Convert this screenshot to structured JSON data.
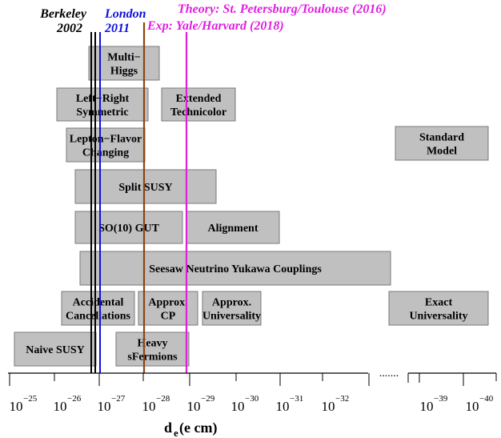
{
  "colors": {
    "berkeley": "#000000",
    "london": "#1010e0",
    "theory": "#e020e0",
    "yale": "#8b4513",
    "box_fill": "#c0c0c0",
    "box_stroke": "#7a7a7a"
  },
  "labels": {
    "berkeley": [
      "Berkeley",
      "2002"
    ],
    "london": [
      "London",
      "2011"
    ],
    "theory": "Theory: St. Petersburg/Toulouse (2016)",
    "exp": "Exp: Yale/Harvard (2018)"
  },
  "axis": {
    "title_main": "d",
    "title_sub": "e",
    "title_units": " (e cm)",
    "break_dots": ".......",
    "ticks": [
      {
        "base": "10",
        "exp": "−25"
      },
      {
        "base": "10",
        "exp": "−26"
      },
      {
        "base": "10",
        "exp": "−27"
      },
      {
        "base": "10",
        "exp": "−28"
      },
      {
        "base": "10",
        "exp": "−29"
      },
      {
        "base": "10",
        "exp": "−30"
      },
      {
        "base": "10",
        "exp": "−31"
      },
      {
        "base": "10",
        "exp": "−32"
      },
      {
        "base": "10",
        "exp": "−39"
      },
      {
        "base": "10",
        "exp": "−40"
      }
    ]
  },
  "models": [
    {
      "name": "multi-higgs",
      "lines": [
        "Multi−",
        "Higgs"
      ]
    },
    {
      "name": "left-right-symmetric",
      "lines": [
        "Left−Right",
        "Symmetric"
      ]
    },
    {
      "name": "extended-technicolor",
      "lines": [
        "Extended",
        "Technicolor"
      ]
    },
    {
      "name": "lepton-flavor-changing",
      "lines": [
        "Lepton−Flavor",
        "Changing"
      ]
    },
    {
      "name": "standard-model",
      "lines": [
        "Standard",
        "Model"
      ]
    },
    {
      "name": "split-susy",
      "lines": [
        "Split SUSY"
      ]
    },
    {
      "name": "so10-gut",
      "lines": [
        "SO(10) GUT"
      ]
    },
    {
      "name": "alignment",
      "lines": [
        "Alignment"
      ]
    },
    {
      "name": "seesaw",
      "lines": [
        "Seesaw Neutrino Yukawa Couplings"
      ]
    },
    {
      "name": "accidental-cancellations",
      "lines": [
        "Accidental",
        "Cancellations"
      ]
    },
    {
      "name": "approx-cp",
      "lines": [
        "Approx.",
        "CP"
      ]
    },
    {
      "name": "approx-universality",
      "lines": [
        "Approx.",
        "Universality"
      ]
    },
    {
      "name": "exact-universality",
      "lines": [
        "Exact",
        "Universality"
      ]
    },
    {
      "name": "naive-susy",
      "lines": [
        "Naive SUSY"
      ]
    },
    {
      "name": "heavy-sfermions",
      "lines": [
        "Heavy",
        "sFermions"
      ]
    }
  ]
}
